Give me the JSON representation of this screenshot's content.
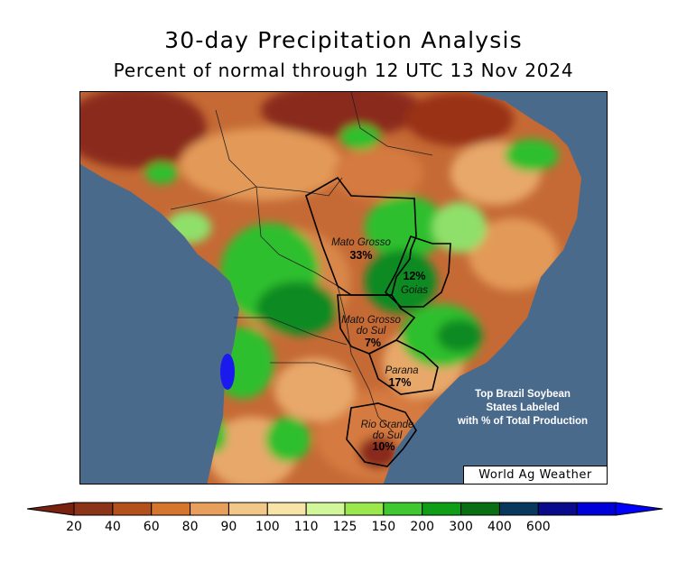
{
  "title": "30-day Precipitation Analysis",
  "subtitle": "Percent of normal through 12 UTC 13 Nov 2024",
  "watermark": "World Ag Weather",
  "note": {
    "line1": "Top Brazil Soybean",
    "line2": "States Labeled",
    "line3": "with % of Total Production"
  },
  "states": [
    {
      "key": "mato_grosso",
      "name_lines": [
        "Mato Grosso"
      ],
      "pct": "33%"
    },
    {
      "key": "goias",
      "name_lines": [
        "Goias"
      ],
      "pct": "12%"
    },
    {
      "key": "mato_grosso_do_sul",
      "name_lines": [
        "Mato Grosso",
        "do Sul"
      ],
      "pct": "7%"
    },
    {
      "key": "parana",
      "name_lines": [
        "Parana"
      ],
      "pct": "17%"
    },
    {
      "key": "rio_grande_do_sul",
      "name_lines": [
        "Rio Grande",
        "do Sul"
      ],
      "pct": "10%"
    }
  ],
  "colors": {
    "ocean": "#4a6a8c",
    "dry_deep": "#8a2c1a",
    "dry": "#b84a25",
    "dry_mid": "#d57a40",
    "neutral": "#e8a86a",
    "wet_light": "#8fe06a",
    "wet": "#2fbf2f",
    "wet_deep": "#118a22",
    "very_wet": "#1a1aee"
  },
  "legend": {
    "ticks": [
      "20",
      "40",
      "60",
      "80",
      "90",
      "100",
      "110",
      "125",
      "150",
      "200",
      "300",
      "400",
      "600"
    ],
    "colors": [
      "#8b3418",
      "#b3501c",
      "#d6752c",
      "#e89f5c",
      "#f2c889",
      "#f8e4a6",
      "#d2f79a",
      "#9ae84c",
      "#40c830",
      "#0e9f16",
      "#0a6e12",
      "#08385e",
      "#0a0a8c",
      "#0000d8"
    ],
    "low_arrow_color": "#7a2210",
    "high_arrow_color": "#0000ff"
  }
}
